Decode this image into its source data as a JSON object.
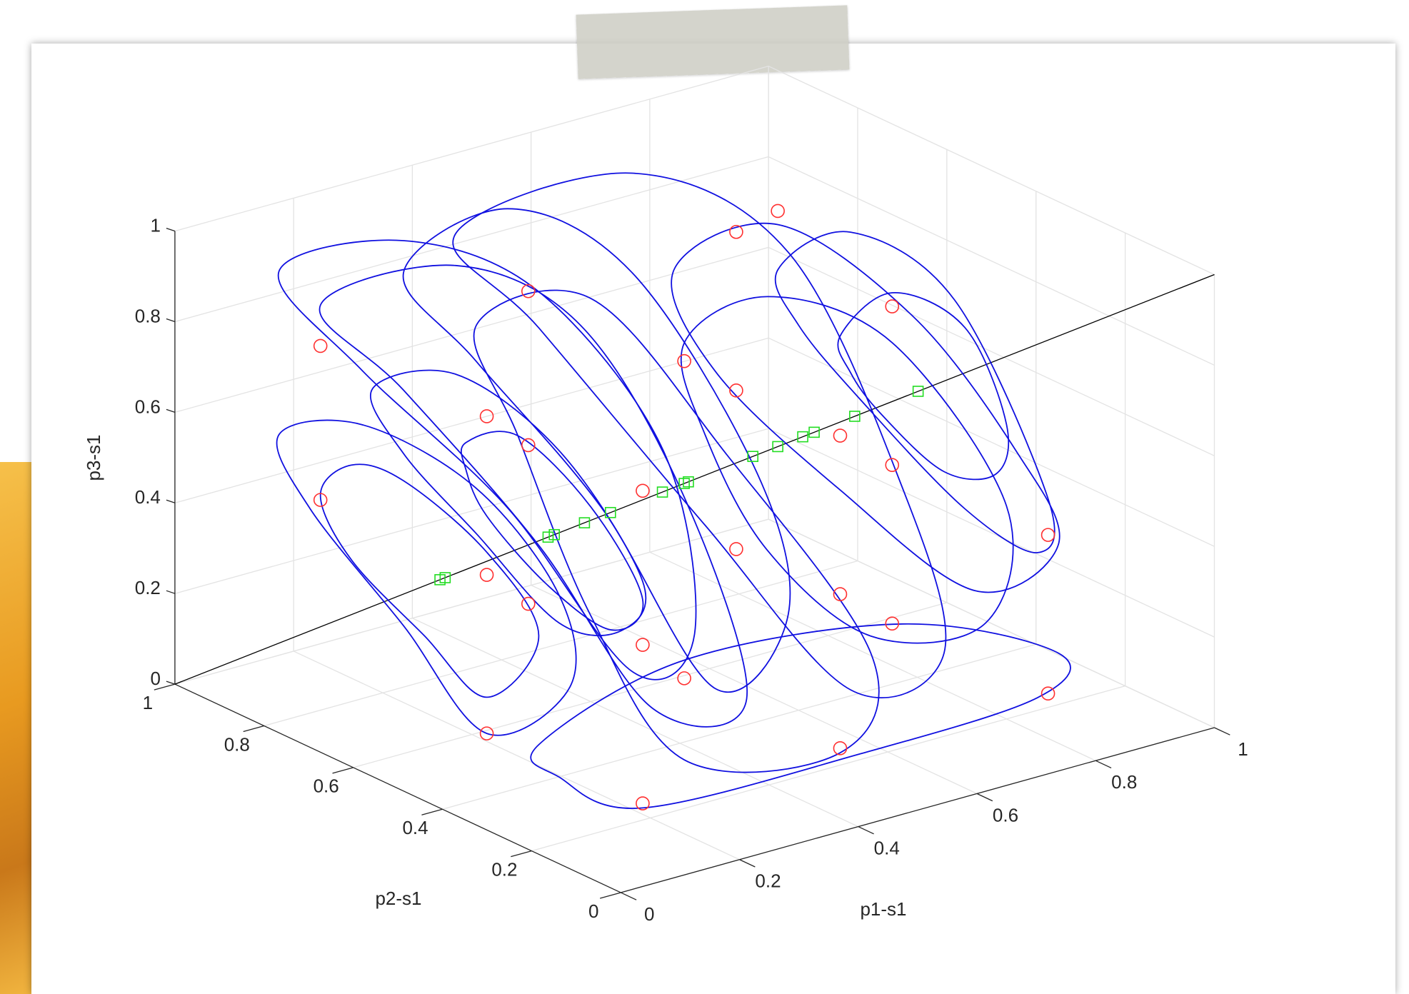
{
  "chart_data": {
    "type": "line3d",
    "xlabel": "p1-s1",
    "ylabel": "p2-s1",
    "zlabel": "p3-s1",
    "xlim": [
      0,
      1
    ],
    "ylim": [
      0,
      1
    ],
    "zlim": [
      0,
      1
    ],
    "xticks": [
      0,
      0.2,
      0.4,
      0.6,
      0.8,
      1
    ],
    "yticks": [
      0,
      0.2,
      0.4,
      0.6,
      0.8,
      1
    ],
    "zticks": [
      0,
      0.2,
      0.4,
      0.6,
      0.8,
      1
    ],
    "grid": true,
    "series": [
      {
        "color": "#000000",
        "mode": "line",
        "closed": false,
        "x": [
          0,
          1
        ],
        "y": [
          1,
          0
        ],
        "z": [
          0,
          1
        ]
      },
      {
        "color": "#1010e0",
        "mode": "line",
        "closed": true,
        "x": [
          0.14,
          0.17,
          0.22,
          0.3,
          0.35,
          0.3,
          0.24,
          0.17
        ],
        "y": [
          0.86,
          0.83,
          0.78,
          0.7,
          0.65,
          0.7,
          0.76,
          0.83
        ],
        "z": [
          0.43,
          0.5,
          0.47,
          0.32,
          0.14,
          0.0,
          0.13,
          0.29
        ]
      },
      {
        "color": "#1010e0",
        "mode": "line",
        "closed": true,
        "x": [
          0.1,
          0.18,
          0.29,
          0.37,
          0.38,
          0.3,
          0.22,
          0.13
        ],
        "y": [
          0.9,
          0.82,
          0.71,
          0.63,
          0.62,
          0.7,
          0.78,
          0.87
        ],
        "z": [
          0.56,
          0.59,
          0.46,
          0.23,
          0.03,
          -0.08,
          0.15,
          0.4
        ]
      },
      {
        "color": "#1010e0",
        "mode": "line",
        "closed": true,
        "x": [
          0.19,
          0.27,
          0.37,
          0.45,
          0.43,
          0.37,
          0.29,
          0.22
        ],
        "y": [
          0.81,
          0.73,
          0.63,
          0.55,
          0.57,
          0.63,
          0.71,
          0.78
        ],
        "z": [
          0.67,
          0.71,
          0.55,
          0.27,
          0.16,
          0.17,
          0.36,
          0.53
        ]
      },
      {
        "color": "#1010e0",
        "mode": "line",
        "closed": true,
        "x": [
          0.28,
          0.33,
          0.4,
          0.45,
          0.42,
          0.36,
          0.3,
          0.28
        ],
        "y": [
          0.72,
          0.67,
          0.6,
          0.55,
          0.58,
          0.64,
          0.7,
          0.72
        ],
        "z": [
          0.56,
          0.58,
          0.43,
          0.23,
          0.16,
          0.25,
          0.4,
          0.5
        ]
      },
      {
        "color": "#1010e0",
        "mode": "line",
        "closed": true,
        "x": [
          0.1,
          0.22,
          0.35,
          0.47,
          0.5,
          0.44,
          0.32,
          0.18
        ],
        "y": [
          0.9,
          0.78,
          0.65,
          0.53,
          0.5,
          0.56,
          0.68,
          0.82
        ],
        "z": [
          0.92,
          1.0,
          0.9,
          0.56,
          0.16,
          0.07,
          0.42,
          0.71
        ]
      },
      {
        "color": "#1010e0",
        "mode": "line",
        "closed": true,
        "x": [
          0.14,
          0.27,
          0.39,
          0.49,
          0.55,
          0.46,
          0.35,
          0.22
        ],
        "y": [
          0.86,
          0.73,
          0.61,
          0.51,
          0.45,
          0.54,
          0.65,
          0.78
        ],
        "z": [
          0.85,
          0.95,
          0.83,
          0.46,
          0.02,
          -0.01,
          0.34,
          0.67
        ]
      },
      {
        "color": "#1010e0",
        "mode": "line",
        "closed": true,
        "x": [
          0.22,
          0.32,
          0.44,
          0.56,
          0.59,
          0.52,
          0.41,
          0.29
        ],
        "y": [
          0.78,
          0.68,
          0.56,
          0.44,
          0.41,
          0.48,
          0.59,
          0.71
        ],
        "z": [
          0.93,
          1.08,
          0.95,
          0.52,
          0.21,
          0.04,
          0.43,
          0.74
        ]
      },
      {
        "color": "#1010e0",
        "mode": "line",
        "closed": true,
        "x": [
          0.29,
          0.4,
          0.53,
          0.67,
          0.64,
          0.49,
          0.4,
          0.33
        ],
        "y": [
          0.71,
          0.6,
          0.47,
          0.33,
          0.36,
          0.51,
          0.6,
          0.67
        ],
        "z": [
          0.82,
          0.89,
          0.56,
          0.13,
          -0.09,
          -0.12,
          0.19,
          0.58
        ]
      },
      {
        "color": "#1010e0",
        "mode": "line",
        "closed": true,
        "x": [
          0.27,
          0.44,
          0.59,
          0.7,
          0.74,
          0.65,
          0.51,
          0.35
        ],
        "y": [
          0.73,
          0.56,
          0.41,
          0.3,
          0.26,
          0.35,
          0.49,
          0.65
        ],
        "z": [
          1.02,
          1.17,
          1.01,
          0.5,
          0.14,
          0.05,
          0.4,
          0.82
        ]
      },
      {
        "color": "#1010e0",
        "mode": "line",
        "closed": true,
        "x": [
          0.35,
          0.49,
          0.7,
          0.85,
          0.83,
          0.66,
          0.45,
          0.37
        ],
        "y": [
          0.65,
          0.51,
          0.3,
          0.15,
          0.17,
          0.34,
          0.55,
          0.63
        ],
        "z": [
          -0.1,
          0.1,
          0.2,
          0.15,
          0.05,
          -0.09,
          -0.23,
          -0.17
        ]
      },
      {
        "color": "#1010e0",
        "mode": "line",
        "closed": true,
        "x": [
          0.49,
          0.57,
          0.69,
          0.8,
          0.78,
          0.67,
          0.57,
          0.51
        ],
        "y": [
          0.51,
          0.43,
          0.31,
          0.2,
          0.22,
          0.33,
          0.43,
          0.49
        ],
        "z": [
          0.8,
          0.91,
          0.82,
          0.47,
          0.21,
          0.17,
          0.35,
          0.6
        ]
      },
      {
        "color": "#1010e0",
        "mode": "line",
        "closed": true,
        "x": [
          0.48,
          0.58,
          0.71,
          0.81,
          0.85,
          0.77,
          0.64,
          0.52
        ],
        "y": [
          0.52,
          0.42,
          0.29,
          0.19,
          0.15,
          0.23,
          0.36,
          0.48
        ],
        "z": [
          0.96,
          1.07,
          0.88,
          0.59,
          0.39,
          0.28,
          0.49,
          0.74
        ]
      },
      {
        "color": "#1010e0",
        "mode": "line",
        "closed": true,
        "x": [
          0.64,
          0.69,
          0.76,
          0.8,
          0.79,
          0.74,
          0.68,
          0.65
        ],
        "y": [
          0.36,
          0.31,
          0.24,
          0.2,
          0.21,
          0.26,
          0.32,
          0.35
        ],
        "z": [
          0.83,
          0.93,
          0.86,
          0.65,
          0.54,
          0.54,
          0.66,
          0.75
        ]
      },
      {
        "color": "#1010e0",
        "mode": "line",
        "closed": true,
        "x": [
          0.58,
          0.65,
          0.75,
          0.84,
          0.83,
          0.76,
          0.66,
          0.6
        ],
        "y": [
          0.42,
          0.35,
          0.25,
          0.16,
          0.17,
          0.24,
          0.34,
          0.4
        ],
        "z": [
          0.97,
          1.06,
          0.92,
          0.49,
          0.37,
          0.46,
          0.69,
          0.85
        ]
      },
      {
        "color": "#ff3030",
        "mode": "markers",
        "marker": "circle",
        "x": [
          0.14,
          0.14,
          0.3,
          0.34,
          0.34,
          0.3,
          0.34,
          0.3,
          0.45,
          0.45,
          0.45,
          0.49,
          0.49,
          0.54,
          0.54,
          0.54,
          0.58,
          0.64,
          0.64,
          0.64,
          0.69,
          0.69,
          0.69,
          0.84,
          0.84
        ],
        "y": [
          0.86,
          0.86,
          0.7,
          0.66,
          0.66,
          0.7,
          0.66,
          0.7,
          0.55,
          0.55,
          0.55,
          0.51,
          0.51,
          0.46,
          0.46,
          0.46,
          0.42,
          0.36,
          0.36,
          0.36,
          0.31,
          0.31,
          0.31,
          0.16,
          0.16
        ],
        "z": [
          0.76,
          0.42,
          0.62,
          0.9,
          0.56,
          0.27,
          0.21,
          -0.08,
          0.47,
          0.13,
          -0.22,
          0.76,
          0.06,
          1.05,
          0.7,
          0.35,
          1.1,
          0.61,
          0.26,
          -0.08,
          0.9,
          0.55,
          0.2,
          0.41,
          0.06
        ]
      },
      {
        "color": "#22dd22",
        "mode": "markers",
        "marker": "square",
        "x": [
          0.255,
          0.26,
          0.359,
          0.365,
          0.394,
          0.419,
          0.469,
          0.49,
          0.494,
          0.556,
          0.58,
          0.604,
          0.615,
          0.654,
          0.715
        ],
        "y": [
          0.745,
          0.74,
          0.641,
          0.635,
          0.606,
          0.581,
          0.531,
          0.51,
          0.506,
          0.444,
          0.42,
          0.396,
          0.385,
          0.346,
          0.285
        ],
        "z": [
          0.255,
          0.26,
          0.359,
          0.365,
          0.394,
          0.419,
          0.469,
          0.49,
          0.494,
          0.556,
          0.58,
          0.604,
          0.615,
          0.654,
          0.715
        ]
      }
    ]
  }
}
